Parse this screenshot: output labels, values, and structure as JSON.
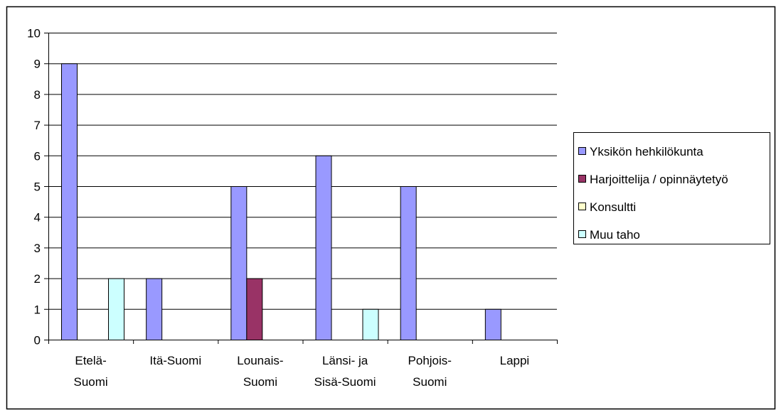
{
  "chart_data": {
    "type": "bar",
    "categories": [
      [
        "Etelä-",
        "Suomi"
      ],
      [
        "Itä-Suomi"
      ],
      [
        "Lounais-",
        "Suomi"
      ],
      [
        "Länsi- ja",
        "Sisä-Suomi"
      ],
      [
        "Pohjois-",
        "Suomi"
      ],
      [
        "Lappi"
      ]
    ],
    "series": [
      {
        "name": "Yksikön hehkilökunta",
        "color": "#9999ff",
        "values": [
          9,
          2,
          5,
          6,
          5,
          1
        ]
      },
      {
        "name": "Harjoittelija / opinnäytetyö",
        "color": "#993366",
        "values": [
          0,
          0,
          2,
          0,
          0,
          0
        ]
      },
      {
        "name": "Konsultti",
        "color": "#ffffcc",
        "values": [
          0,
          0,
          0,
          0,
          0,
          0
        ]
      },
      {
        "name": "Muu taho",
        "color": "#ccffff",
        "values": [
          2,
          0,
          0,
          1,
          0,
          0
        ]
      }
    ],
    "ylim": [
      0,
      10
    ],
    "yticks": [
      0,
      1,
      2,
      3,
      4,
      5,
      6,
      7,
      8,
      9,
      10
    ],
    "grid": true,
    "legend_position": "right"
  }
}
